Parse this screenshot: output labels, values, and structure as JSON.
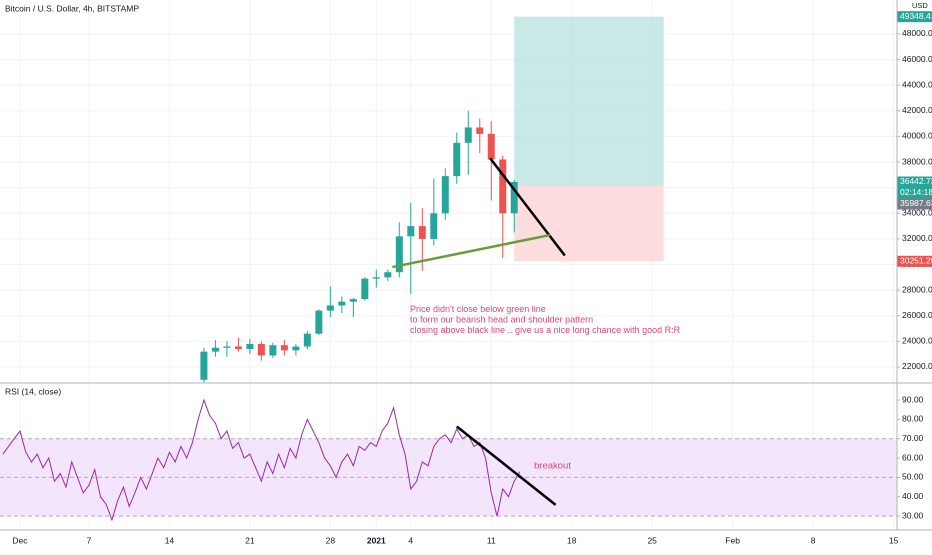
{
  "chart_data": [
    {
      "type": "candlestick",
      "title": "Bitcoin / U.S. Dollar, 4h, BITSTAMP",
      "currency": "USD",
      "up_color": "#26a69a",
      "down_color": "#ef5350",
      "xlim": [
        -1.74,
        76.3
      ],
      "xticks": [
        0,
        6,
        13,
        20,
        27,
        31,
        34,
        41,
        48,
        55,
        62,
        69,
        76
      ],
      "ylim": [
        20750,
        50650
      ],
      "yticks": [
        {
          "value": 22000,
          "label": "22000.00"
        },
        {
          "value": 24000,
          "label": "24000.00"
        },
        {
          "value": 26000,
          "label": "26000.00"
        },
        {
          "value": 28000,
          "label": "28000.00"
        },
        {
          "value": 30000,
          "label": "30000.00"
        },
        {
          "value": 32000,
          "label": "32000.00"
        },
        {
          "value": 34000,
          "label": "34000.00"
        },
        {
          "value": 36000,
          "label": "36000.00"
        },
        {
          "value": 38000,
          "label": "38000.00"
        },
        {
          "value": 40000,
          "label": "40000.00"
        },
        {
          "value": 42000,
          "label": "42000.00"
        },
        {
          "value": 44000,
          "label": "44000.00"
        },
        {
          "value": 46000,
          "label": "46000.00"
        },
        {
          "value": 48000,
          "label": "48000.00"
        }
      ],
      "grid": true,
      "candles": [
        {
          "x": 16,
          "open": 21000,
          "high": 23500,
          "low": 20800,
          "close": 23200
        },
        {
          "x": 17,
          "open": 23200,
          "high": 24100,
          "low": 22800,
          "close": 23500
        },
        {
          "x": 18,
          "open": 23500,
          "high": 24000,
          "low": 22800,
          "close": 23600
        },
        {
          "x": 19,
          "open": 23600,
          "high": 24300,
          "low": 23200,
          "close": 23400
        },
        {
          "x": 20,
          "open": 23400,
          "high": 24200,
          "low": 23000,
          "close": 23800
        },
        {
          "x": 21,
          "open": 23800,
          "high": 24000,
          "low": 22500,
          "close": 22900
        },
        {
          "x": 22,
          "open": 22900,
          "high": 23900,
          "low": 22700,
          "close": 23700
        },
        {
          "x": 23,
          "open": 23700,
          "high": 24100,
          "low": 22900,
          "close": 23300
        },
        {
          "x": 24,
          "open": 23300,
          "high": 23800,
          "low": 22900,
          "close": 23600
        },
        {
          "x": 25,
          "open": 23600,
          "high": 24800,
          "low": 23400,
          "close": 24600
        },
        {
          "x": 26,
          "open": 24600,
          "high": 26500,
          "low": 24500,
          "close": 26400
        },
        {
          "x": 27,
          "open": 26400,
          "high": 28300,
          "low": 25900,
          "close": 26800
        },
        {
          "x": 28,
          "open": 26800,
          "high": 27500,
          "low": 26200,
          "close": 27100
        },
        {
          "x": 29,
          "open": 27100,
          "high": 27400,
          "low": 25900,
          "close": 27300
        },
        {
          "x": 30,
          "open": 27300,
          "high": 29000,
          "low": 27200,
          "close": 28900
        },
        {
          "x": 31,
          "open": 28900,
          "high": 29600,
          "low": 28200,
          "close": 29000
        },
        {
          "x": 32,
          "open": 29000,
          "high": 29600,
          "low": 28700,
          "close": 29400
        },
        {
          "x": 33,
          "open": 29400,
          "high": 33300,
          "low": 29000,
          "close": 32200
        },
        {
          "x": 34,
          "open": 32200,
          "high": 34800,
          "low": 27700,
          "close": 33000
        },
        {
          "x": 35,
          "open": 33000,
          "high": 34400,
          "low": 29500,
          "close": 32000
        },
        {
          "x": 36,
          "open": 32000,
          "high": 36700,
          "low": 31500,
          "close": 34000
        },
        {
          "x": 37,
          "open": 34000,
          "high": 37500,
          "low": 33500,
          "close": 36900
        },
        {
          "x": 38,
          "open": 36900,
          "high": 40300,
          "low": 36300,
          "close": 39500
        },
        {
          "x": 39,
          "open": 39500,
          "high": 42000,
          "low": 37000,
          "close": 40700
        },
        {
          "x": 40,
          "open": 40700,
          "high": 41400,
          "low": 38700,
          "close": 40200
        },
        {
          "x": 41,
          "open": 40200,
          "high": 41200,
          "low": 35000,
          "close": 38200
        },
        {
          "x": 42,
          "open": 38200,
          "high": 38500,
          "low": 30500,
          "close": 34000
        },
        {
          "x": 43,
          "open": 34000,
          "high": 36600,
          "low": 32500,
          "close": 36442.73
        }
      ],
      "position": {
        "x": [
          43,
          56
        ],
        "target": 49348.41,
        "entry": 36130,
        "stop": 30251.2,
        "target_color": "#b2dfdb",
        "stop_color": "#fcd5d4"
      },
      "trendlines": [
        {
          "x": [
            40.9,
            47.4
          ],
          "y": [
            38300,
            30700
          ],
          "color": "#000000"
        },
        {
          "x": [
            32.4,
            46.1
          ],
          "y": [
            29800,
            32300
          ],
          "color": "#6a9a3a"
        }
      ],
      "price_tags": [
        {
          "value": 49348.41,
          "label": "49348.41",
          "color": "#26a69a"
        },
        {
          "value": 36442.73,
          "label": "36442.73",
          "color": "#26a69a"
        },
        {
          "value": 35987.63,
          "label": "35987.63",
          "color": "#787b86"
        },
        {
          "value": 30251.2,
          "label": "30251.20",
          "color": "#ef5350"
        }
      ],
      "countdown": "02:14:18",
      "annotation": {
        "color": "#e0457b",
        "lines": [
          "Price didn't close below green line",
          "to form our bearish head and shoulder pattern",
          "closing above black line .. give us a nice long chance with good R:R"
        ]
      }
    },
    {
      "type": "line",
      "title": "RSI (14, close)",
      "color": "#9c27b0",
      "xlim": [
        -1.74,
        76.3
      ],
      "xticks": [
        {
          "value": 0,
          "label": "Dec"
        },
        {
          "value": 6,
          "label": "7"
        },
        {
          "value": 13,
          "label": "14"
        },
        {
          "value": 20,
          "label": "21"
        },
        {
          "value": 27,
          "label": "28"
        },
        {
          "value": 31,
          "label": "2021"
        },
        {
          "value": 34,
          "label": "4"
        },
        {
          "value": 41,
          "label": "11"
        },
        {
          "value": 48,
          "label": "18"
        },
        {
          "value": 55,
          "label": "25"
        },
        {
          "value": 62,
          "label": "Feb"
        },
        {
          "value": 69,
          "label": "8"
        },
        {
          "value": 76,
          "label": "15"
        }
      ],
      "ylim": [
        22.8,
        98.8
      ],
      "yticks": [
        {
          "value": 30,
          "label": "30.00"
        },
        {
          "value": 40,
          "label": "40.00"
        },
        {
          "value": 50,
          "label": "50.00"
        },
        {
          "value": 60,
          "label": "60.00"
        },
        {
          "value": 70,
          "label": "70.00"
        },
        {
          "value": 80,
          "label": "80.00"
        },
        {
          "value": 90,
          "label": "90.00"
        }
      ],
      "band": [
        30,
        70
      ],
      "band_color": "#f3e5fb",
      "midline": 50,
      "x": [
        -1.5,
        -1,
        -0.5,
        0,
        0.5,
        1,
        1.5,
        2,
        2.5,
        3,
        3.5,
        4,
        4.5,
        5,
        5.5,
        6,
        6.5,
        7,
        7.5,
        8,
        8.5,
        9,
        9.5,
        10,
        10.5,
        11,
        11.5,
        12,
        12.5,
        13,
        13.5,
        14,
        14.5,
        15,
        15.5,
        16,
        16.5,
        17,
        17.5,
        18,
        18.5,
        19,
        19.5,
        20,
        20.5,
        21,
        21.5,
        22,
        22.5,
        23,
        23.5,
        24,
        24.5,
        25,
        25.5,
        26,
        26.5,
        27,
        27.5,
        28,
        28.5,
        29,
        29.5,
        30,
        30.5,
        31,
        31.5,
        32,
        32.5,
        33,
        33.5,
        34,
        34.5,
        35,
        35.5,
        36,
        36.5,
        37,
        37.5,
        38,
        38.5,
        39,
        39.5,
        40,
        40.5,
        41,
        41.5,
        42,
        42.5,
        43,
        43.5
      ],
      "values": [
        62,
        66,
        70,
        74,
        63,
        58,
        62,
        55,
        60,
        48,
        52,
        45,
        58,
        50,
        42,
        46,
        54,
        40,
        36,
        28,
        38,
        45,
        35,
        42,
        50,
        44,
        52,
        60,
        55,
        63,
        58,
        66,
        60,
        68,
        80,
        90,
        82,
        78,
        70,
        74,
        65,
        68,
        60,
        62,
        55,
        48,
        58,
        52,
        62,
        55,
        65,
        60,
        72,
        80,
        74,
        68,
        60,
        56,
        50,
        58,
        62,
        56,
        66,
        64,
        68,
        66,
        74,
        78,
        86,
        72,
        62,
        44,
        48,
        58,
        56,
        66,
        70,
        72,
        68,
        75,
        70,
        72,
        66,
        68,
        60,
        42,
        30,
        44,
        40,
        48,
        53
      ],
      "trendlines": [
        {
          "x": [
            38.0,
            46.6
          ],
          "y": [
            76.3,
            35.8
          ],
          "color": "#000000"
        }
      ],
      "annotation": {
        "text": "breakout",
        "color": "#e0457b"
      }
    }
  ]
}
